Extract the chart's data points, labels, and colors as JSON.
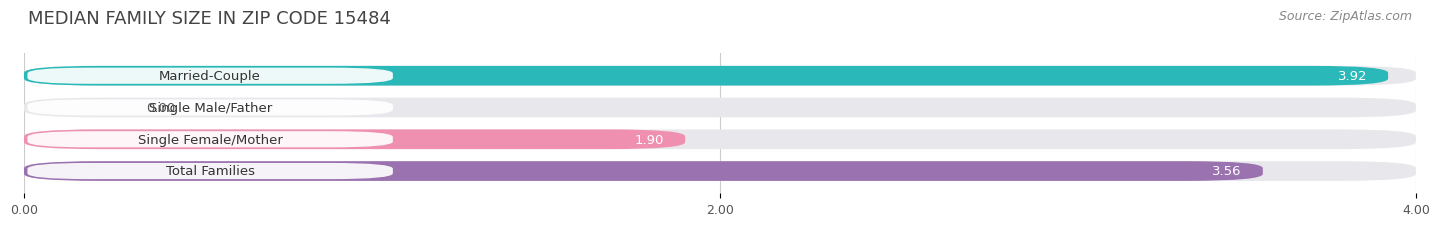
{
  "title": "MEDIAN FAMILY SIZE IN ZIP CODE 15484",
  "source": "Source: ZipAtlas.com",
  "categories": [
    "Married-Couple",
    "Single Male/Father",
    "Single Female/Mother",
    "Total Families"
  ],
  "values": [
    3.92,
    0.0,
    1.9,
    3.56
  ],
  "bar_colors": [
    "#2ab8b8",
    "#a8b8e8",
    "#f090b0",
    "#9b72b0"
  ],
  "bar_background": "#e8e8ec",
  "xlim": [
    0,
    4.0
  ],
  "xticks": [
    0.0,
    2.0,
    4.0
  ],
  "xtick_labels": [
    "0.00",
    "2.00",
    "4.00"
  ],
  "title_fontsize": 13,
  "source_fontsize": 9,
  "label_fontsize": 9.5,
  "value_fontsize": 9.5,
  "fig_width": 14.06,
  "fig_height": 2.33,
  "bg_color": "#ffffff"
}
